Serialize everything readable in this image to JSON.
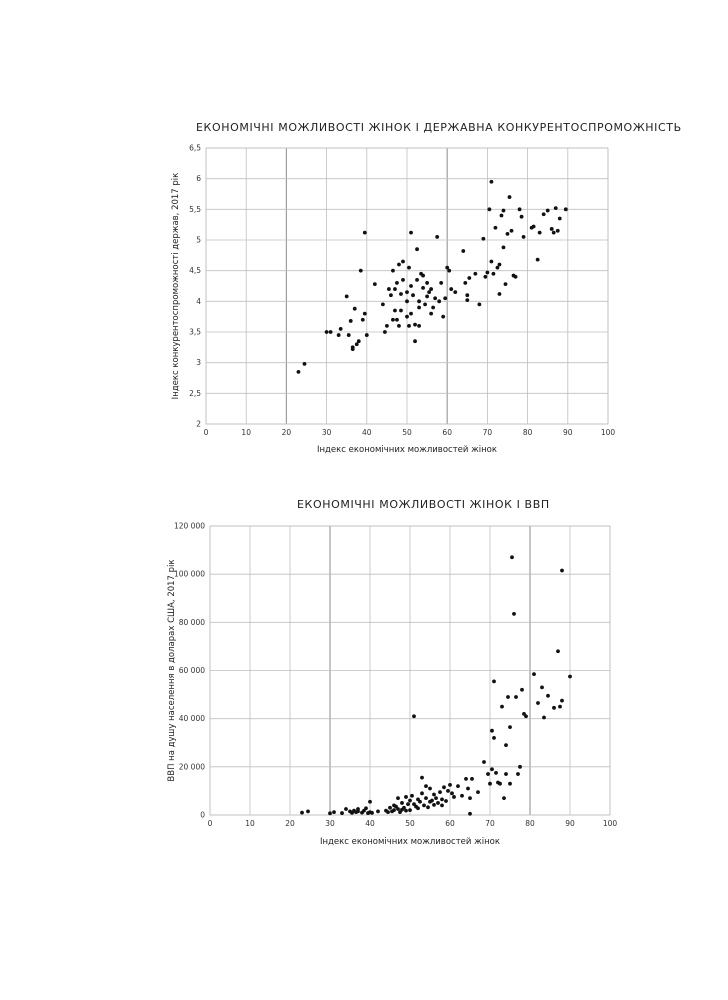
{
  "chart_data": [
    {
      "type": "scatter",
      "title": "ЕКОНОМІЧНІ МОЖЛИВОСТІ ЖІНОК І ДЕРЖАВНА КОНКУРЕНТОСПРОМОЖНІСТЬ",
      "xlabel": "Індекс економічних можливостей жінок",
      "ylabel": "Індекс конкурентоспроможності держав, 2017 рік",
      "xlim": [
        0,
        100
      ],
      "ylim": [
        2,
        6.5
      ],
      "x_ticks": [
        "0",
        "10",
        "20",
        "30",
        "40",
        "50",
        "60",
        "70",
        "80",
        "90",
        "100"
      ],
      "y_ticks": [
        "2",
        "2,5",
        "3",
        "3,5",
        "4",
        "4,5",
        "5",
        "5,5",
        "6",
        "6,5"
      ],
      "grid": true,
      "emphasized_gridlines_x": [
        20,
        60
      ],
      "series": [
        {
          "points": [
            [
              23,
              2.85
            ],
            [
              24.5,
              2.98
            ],
            [
              30,
              3.5
            ],
            [
              31,
              3.5
            ],
            [
              33,
              3.45
            ],
            [
              33.5,
              3.55
            ],
            [
              35,
              4.08
            ],
            [
              35.5,
              3.45
            ],
            [
              36,
              3.68
            ],
            [
              36.5,
              3.25
            ],
            [
              36.5,
              3.22
            ],
            [
              37,
              3.88
            ],
            [
              37.5,
              3.3
            ],
            [
              38,
              3.35
            ],
            [
              38.5,
              4.5
            ],
            [
              39,
              3.7
            ],
            [
              39.5,
              3.8
            ],
            [
              39.5,
              5.12
            ],
            [
              40,
              3.45
            ],
            [
              42,
              4.28
            ],
            [
              44,
              3.95
            ],
            [
              44.5,
              3.5
            ],
            [
              45,
              3.6
            ],
            [
              45.5,
              4.2
            ],
            [
              46,
              4.1
            ],
            [
              46.5,
              3.7
            ],
            [
              46.5,
              4.5
            ],
            [
              47,
              4.2
            ],
            [
              47,
              3.85
            ],
            [
              47.5,
              4.3
            ],
            [
              47.5,
              3.7
            ],
            [
              48,
              4.6
            ],
            [
              48,
              3.6
            ],
            [
              48.5,
              4.12
            ],
            [
              48.5,
              3.85
            ],
            [
              49,
              4.65
            ],
            [
              49,
              4.35
            ],
            [
              50,
              4.0
            ],
            [
              50,
              3.75
            ],
            [
              50,
              4.15
            ],
            [
              50.5,
              4.55
            ],
            [
              50.5,
              3.6
            ],
            [
              51,
              5.12
            ],
            [
              51,
              4.25
            ],
            [
              51,
              3.8
            ],
            [
              51.5,
              4.1
            ],
            [
              52,
              3.35
            ],
            [
              52,
              3.62
            ],
            [
              52.5,
              4.35
            ],
            [
              52.5,
              4.85
            ],
            [
              53,
              4.0
            ],
            [
              53,
              3.9
            ],
            [
              53,
              3.6
            ],
            [
              53.5,
              4.45
            ],
            [
              54,
              4.22
            ],
            [
              54,
              4.42
            ],
            [
              54.5,
              3.95
            ],
            [
              55,
              4.08
            ],
            [
              55,
              4.3
            ],
            [
              55.5,
              4.15
            ],
            [
              56,
              4.2
            ],
            [
              56,
              3.8
            ],
            [
              56.5,
              3.9
            ],
            [
              57,
              4.05
            ],
            [
              57.5,
              5.05
            ],
            [
              58,
              4.0
            ],
            [
              58.5,
              4.3
            ],
            [
              59,
              3.75
            ],
            [
              59.5,
              4.05
            ],
            [
              60,
              4.55
            ],
            [
              60.5,
              4.5
            ],
            [
              61,
              4.2
            ],
            [
              62,
              4.15
            ],
            [
              64,
              4.82
            ],
            [
              64.5,
              4.3
            ],
            [
              65,
              4.1
            ],
            [
              65,
              4.02
            ],
            [
              65.5,
              4.38
            ],
            [
              67,
              4.45
            ],
            [
              68,
              3.95
            ],
            [
              69,
              5.02
            ],
            [
              69.5,
              4.4
            ],
            [
              70,
              4.47
            ],
            [
              70.5,
              5.5
            ],
            [
              71,
              5.95
            ],
            [
              71,
              4.65
            ],
            [
              71.5,
              4.45
            ],
            [
              72,
              5.2
            ],
            [
              72.5,
              4.55
            ],
            [
              73,
              4.12
            ],
            [
              73,
              4.6
            ],
            [
              73.5,
              5.4
            ],
            [
              74,
              4.88
            ],
            [
              74,
              5.48
            ],
            [
              74.5,
              4.28
            ],
            [
              75,
              5.1
            ],
            [
              75.5,
              5.7
            ],
            [
              76,
              5.15
            ],
            [
              76.5,
              4.42
            ],
            [
              77,
              4.4
            ],
            [
              78,
              5.5
            ],
            [
              78.5,
              5.38
            ],
            [
              79,
              5.05
            ],
            [
              81,
              5.2
            ],
            [
              81.5,
              5.22
            ],
            [
              82.5,
              4.68
            ],
            [
              83,
              5.12
            ],
            [
              84,
              5.42
            ],
            [
              85,
              5.48
            ],
            [
              86,
              5.18
            ],
            [
              86.5,
              5.12
            ],
            [
              87,
              5.52
            ],
            [
              87.5,
              5.15
            ],
            [
              88,
              5.35
            ],
            [
              89.5,
              5.5
            ]
          ]
        }
      ]
    },
    {
      "type": "scatter",
      "title": "ЕКОНОМІЧНІ МОЖЛИВОСТІ ЖІНОК І ВВП",
      "xlabel": "Індекс економічних можливостей жінок",
      "ylabel": "ВВП на душу населення в доларах США, 2017 рік",
      "xlim": [
        0,
        100
      ],
      "ylim": [
        0,
        120000
      ],
      "x_ticks": [
        "0",
        "10",
        "20",
        "30",
        "40",
        "50",
        "60",
        "70",
        "80",
        "90",
        "100"
      ],
      "y_ticks": [
        "0",
        "20 000",
        "40 000",
        "60 000",
        "80 000",
        "100 000",
        "120 000"
      ],
      "grid": true,
      "emphasized_gridlines_x": [
        30,
        80
      ],
      "series": [
        {
          "points": [
            [
              23,
              1000
            ],
            [
              24.5,
              1500
            ],
            [
              30,
              700
            ],
            [
              31,
              1200
            ],
            [
              33,
              800
            ],
            [
              34,
              2500
            ],
            [
              35,
              1500
            ],
            [
              35.5,
              900
            ],
            [
              36,
              1800
            ],
            [
              36.5,
              1200
            ],
            [
              37,
              1500
            ],
            [
              37,
              2500
            ],
            [
              38,
              1000
            ],
            [
              38.5,
              1800
            ],
            [
              39,
              2800
            ],
            [
              39.5,
              800
            ],
            [
              40,
              5500
            ],
            [
              40,
              1200
            ],
            [
              40.5,
              900
            ],
            [
              42,
              1500
            ],
            [
              44,
              1800
            ],
            [
              44.5,
              1200
            ],
            [
              45,
              3000
            ],
            [
              45.5,
              1500
            ],
            [
              46,
              2000
            ],
            [
              46,
              4000
            ],
            [
              46.5,
              3500
            ],
            [
              47,
              7000
            ],
            [
              47,
              2500
            ],
            [
              47.5,
              1200
            ],
            [
              48,
              5000
            ],
            [
              48,
              2200
            ],
            [
              48.5,
              3000
            ],
            [
              49,
              1800
            ],
            [
              49,
              7500
            ],
            [
              49.5,
              4500
            ],
            [
              50,
              6000
            ],
            [
              50,
              2000
            ],
            [
              50.5,
              8000
            ],
            [
              51,
              41000
            ],
            [
              51,
              4500
            ],
            [
              51.5,
              3500
            ],
            [
              52,
              6500
            ],
            [
              52,
              2800
            ],
            [
              52.5,
              5500
            ],
            [
              53,
              9000
            ],
            [
              53,
              15500
            ],
            [
              53.5,
              4000
            ],
            [
              54,
              12000
            ],
            [
              54,
              7000
            ],
            [
              54.5,
              3200
            ],
            [
              55,
              5500
            ],
            [
              55,
              11000
            ],
            [
              55.5,
              6000
            ],
            [
              56,
              8500
            ],
            [
              56,
              4200
            ],
            [
              56.5,
              7000
            ],
            [
              57,
              5000
            ],
            [
              57.5,
              9500
            ],
            [
              58,
              6500
            ],
            [
              58,
              4000
            ],
            [
              58.5,
              11500
            ],
            [
              59,
              5800
            ],
            [
              59.5,
              10000
            ],
            [
              60,
              12500
            ],
            [
              60.5,
              9000
            ],
            [
              61,
              7500
            ],
            [
              62,
              12000
            ],
            [
              63,
              8000
            ],
            [
              64,
              15000
            ],
            [
              64.5,
              11000
            ],
            [
              65,
              7000
            ],
            [
              65,
              500
            ],
            [
              65.5,
              15000
            ],
            [
              67,
              9500
            ],
            [
              68.5,
              22000
            ],
            [
              69.5,
              17000
            ],
            [
              70,
              13000
            ],
            [
              70.5,
              19000
            ],
            [
              70.5,
              35000
            ],
            [
              71,
              55500
            ],
            [
              71,
              32000
            ],
            [
              71.5,
              17500
            ],
            [
              72,
              13500
            ],
            [
              72.5,
              13000
            ],
            [
              73,
              45000
            ],
            [
              73.5,
              7000
            ],
            [
              74,
              17000
            ],
            [
              74,
              29000
            ],
            [
              74.5,
              49000
            ],
            [
              75,
              36500
            ],
            [
              75,
              13000
            ],
            [
              75.5,
              107000
            ],
            [
              76,
              83500
            ],
            [
              76.5,
              49000
            ],
            [
              77,
              17000
            ],
            [
              77.5,
              20000
            ],
            [
              78,
              52000
            ],
            [
              78.5,
              42000
            ],
            [
              79,
              41000
            ],
            [
              81,
              58500
            ],
            [
              82,
              46500
            ],
            [
              83,
              53000
            ],
            [
              83.5,
              40500
            ],
            [
              84.5,
              49500
            ],
            [
              86,
              44500
            ],
            [
              87,
              68000
            ],
            [
              87.5,
              45000
            ],
            [
              88,
              101500
            ],
            [
              88,
              47500
            ],
            [
              90,
              57500
            ]
          ]
        }
      ]
    }
  ]
}
